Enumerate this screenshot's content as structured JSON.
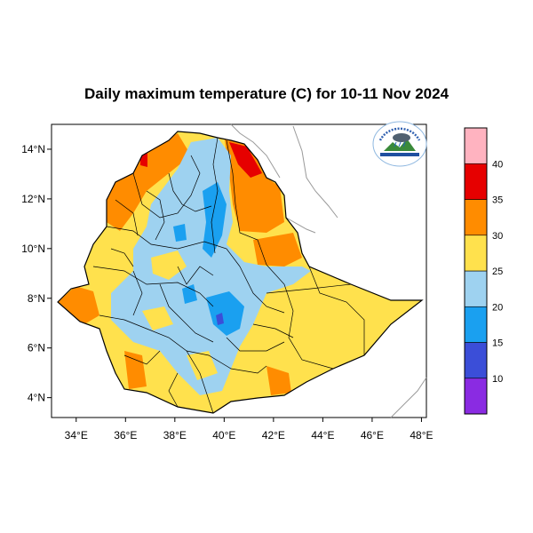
{
  "title": "Daily maximum temperature (C) for 10-11 Nov 2024",
  "logo": {
    "name": "ethiopian-meteorology-institute-logo",
    "arc_text": "የኢትዮጵያ ሚቲዮሮሎጂ ኢንስቲትዩት",
    "caption": "Ethiopian Meteorology Institute"
  },
  "map": {
    "lon_range": [
      33,
      48.2
    ],
    "lat_range": [
      3.2,
      15
    ],
    "x_ticks": [
      {
        "value": 34,
        "label": "34°E"
      },
      {
        "value": 36,
        "label": "36°E"
      },
      {
        "value": 38,
        "label": "38°E"
      },
      {
        "value": 40,
        "label": "40°E"
      },
      {
        "value": 42,
        "label": "42°E"
      },
      {
        "value": 44,
        "label": "44°E"
      },
      {
        "value": 46,
        "label": "46°E"
      },
      {
        "value": 48,
        "label": "48°E"
      }
    ],
    "y_ticks": [
      {
        "value": 14,
        "label": "14°N"
      },
      {
        "value": 12,
        "label": "12°N"
      },
      {
        "value": 10,
        "label": "10°N"
      },
      {
        "value": 8,
        "label": "8°N"
      },
      {
        "value": 6,
        "label": "6°N"
      },
      {
        "value": 4,
        "label": "4°N"
      }
    ]
  },
  "colorbar": {
    "bins": [
      {
        "color": "#8a2be2"
      },
      {
        "color": "#3b4ed8"
      },
      {
        "color": "#1aa0f0"
      },
      {
        "color": "#9ed2f0"
      },
      {
        "color": "#ffe14d"
      },
      {
        "color": "#ff8c00"
      },
      {
        "color": "#e60000"
      },
      {
        "color": "#ffb3c0"
      }
    ],
    "labels": [
      "10",
      "15",
      "20",
      "25",
      "30",
      "35",
      "40"
    ]
  }
}
